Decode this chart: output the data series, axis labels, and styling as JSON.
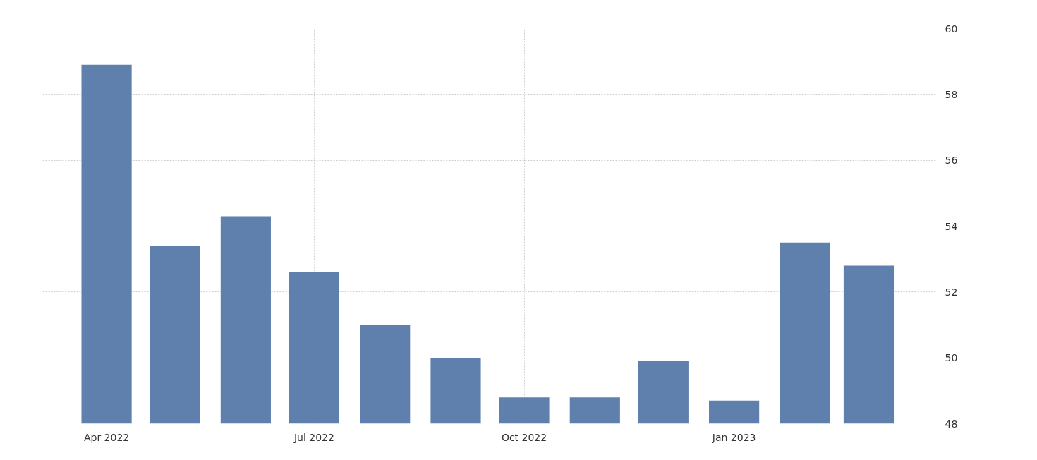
{
  "chart_data": {
    "type": "bar",
    "x": [
      "2022-04",
      "2022-05",
      "2022-06",
      "2022-07",
      "2022-08",
      "2022-09",
      "2022-10",
      "2022-11",
      "2022-12",
      "2023-01",
      "2023-02",
      "2023-03"
    ],
    "values": [
      58.9,
      53.4,
      54.3,
      52.6,
      51.0,
      50.0,
      48.8,
      48.8,
      49.9,
      48.7,
      53.5,
      52.8
    ],
    "color": "#5f7fad",
    "xlim": [
      "2022-03-04",
      "2023-03-31"
    ],
    "xticks": [
      {
        "value": "2022-04",
        "label": "Apr 2022"
      },
      {
        "value": "2022-07",
        "label": "Jul 2022"
      },
      {
        "value": "2022-10",
        "label": "Oct 2022"
      },
      {
        "value": "2023-01",
        "label": "Jan 2023"
      }
    ],
    "ylim": [
      48,
      60
    ],
    "yticks": [
      48,
      50,
      52,
      54,
      56,
      58,
      60
    ],
    "grid": true
  }
}
